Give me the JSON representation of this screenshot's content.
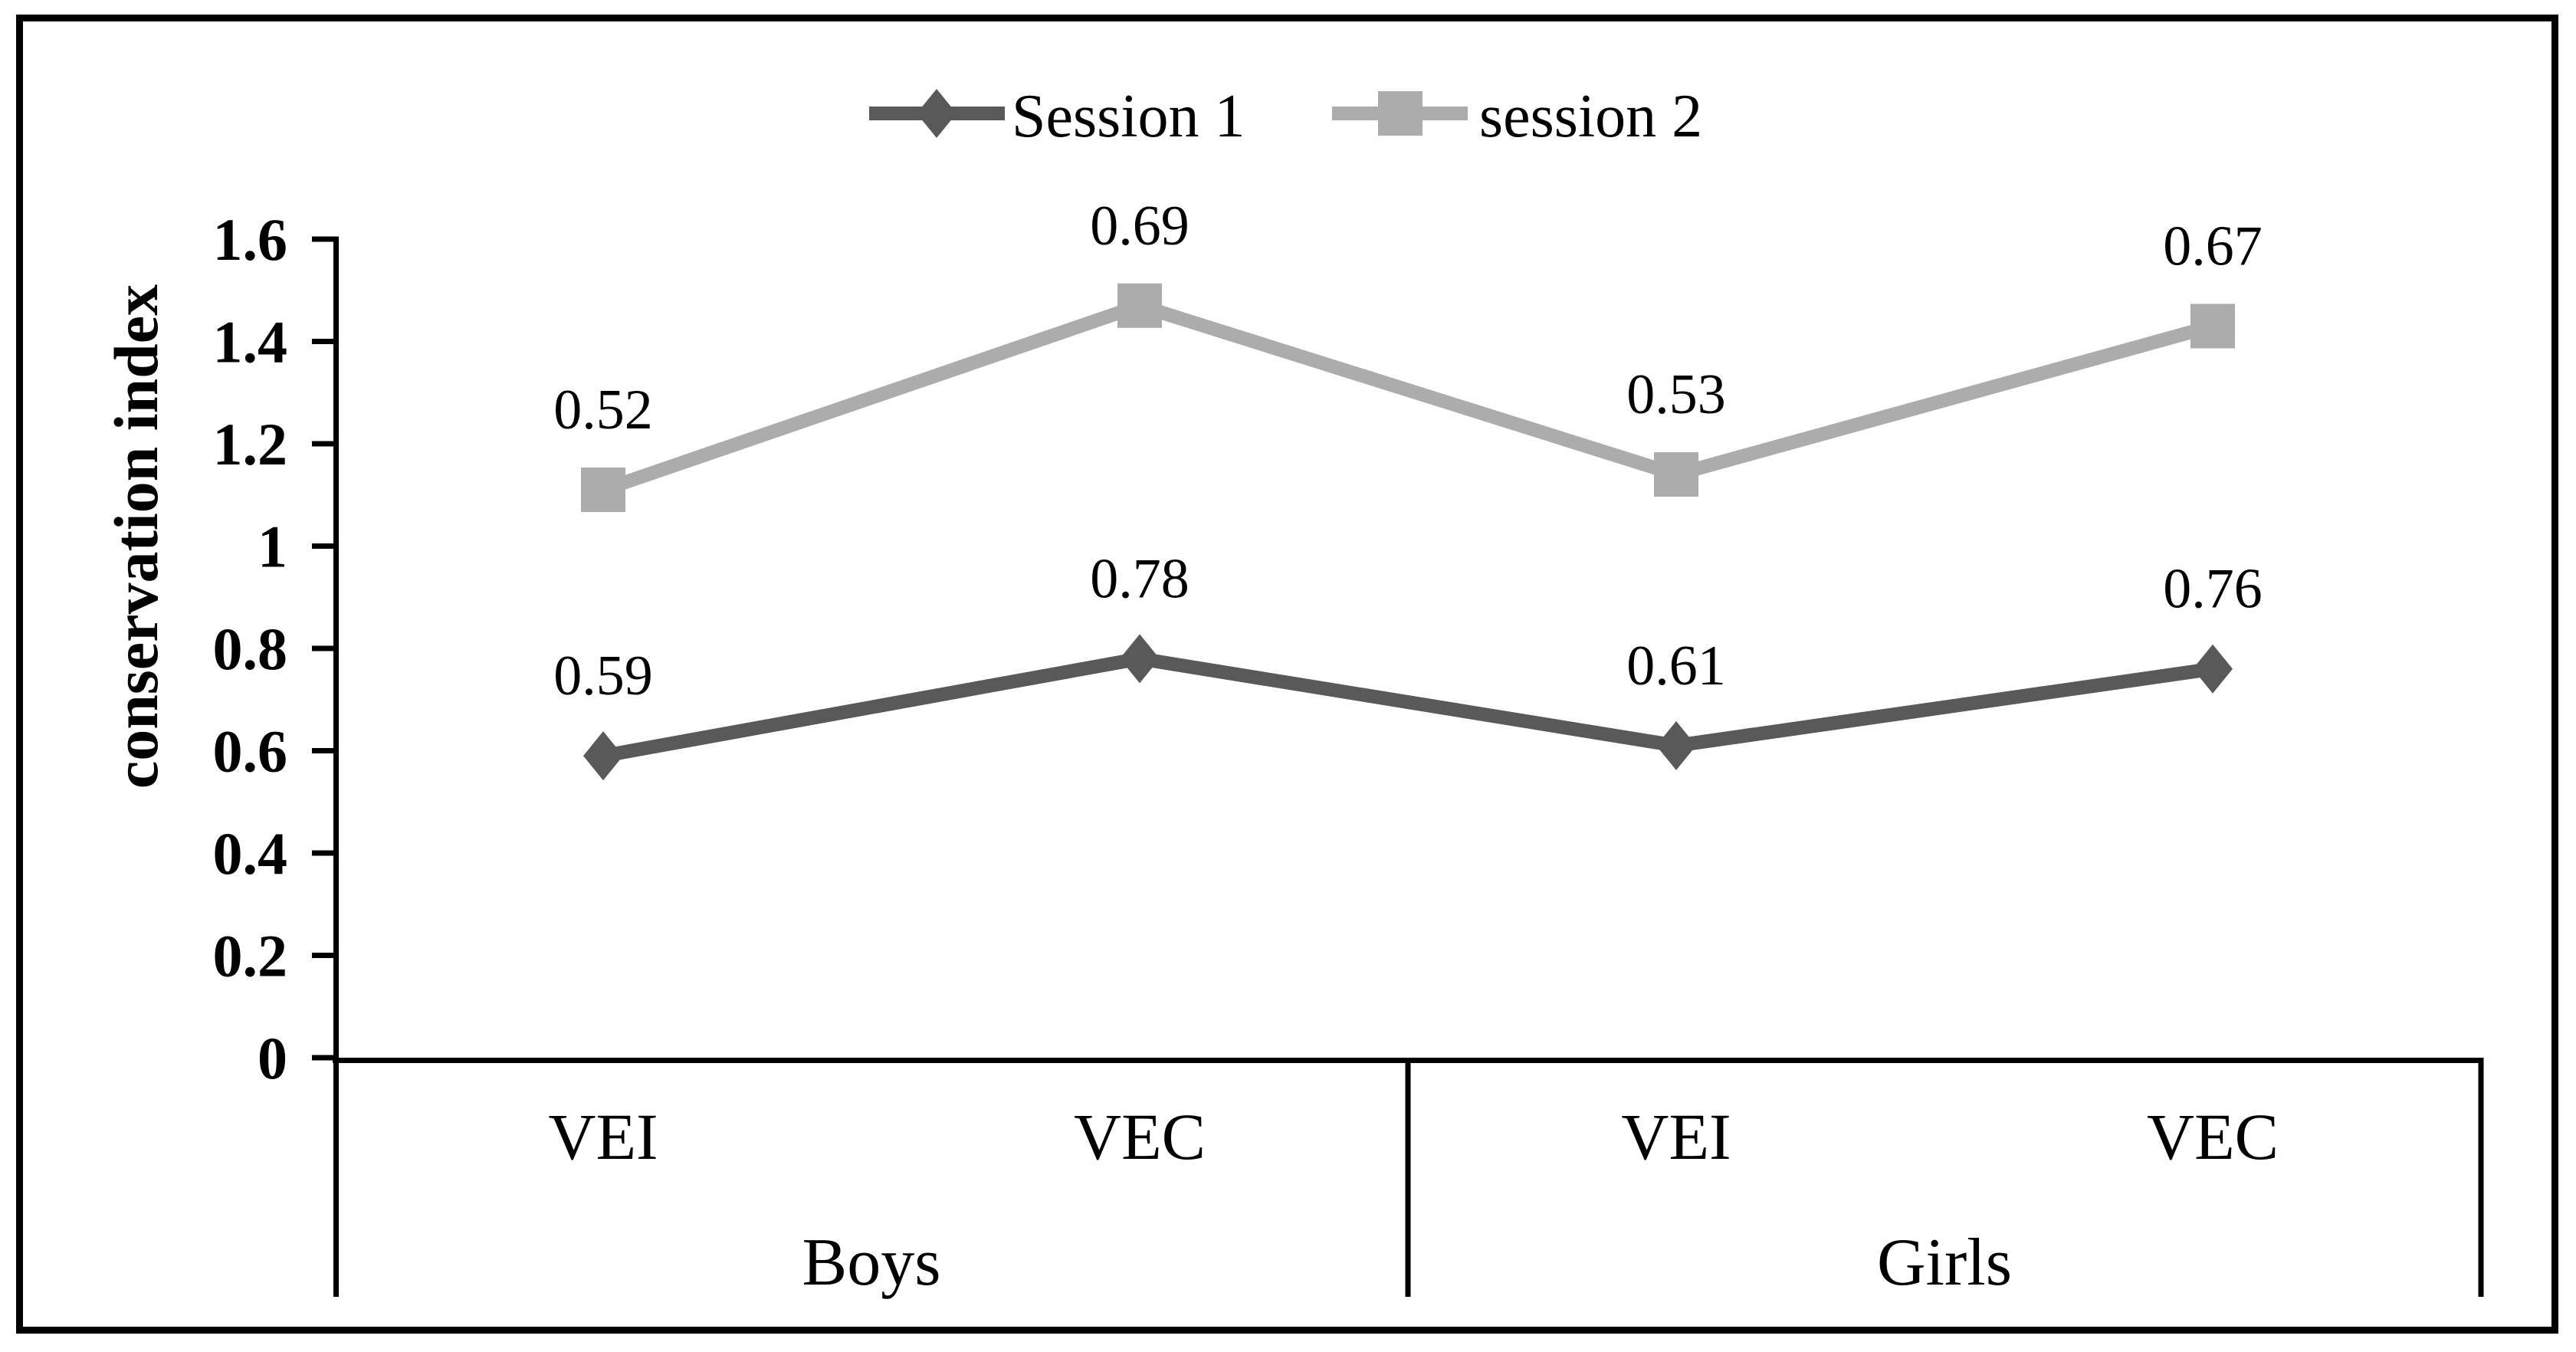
{
  "figure": {
    "background": "#ffffff",
    "border_color": "#000000",
    "text_color": "#000000"
  },
  "legend": {
    "items": [
      {
        "label": "Session 1",
        "marker": "diamond",
        "color": "#595959"
      },
      {
        "label": "session 2",
        "marker": "square",
        "color": "#acacac"
      }
    ]
  },
  "chart_data": {
    "type": "line",
    "title": "",
    "ylabel": "conservation index",
    "xlabel": "",
    "ylim": [
      0,
      1.6
    ],
    "yticks": [
      "0",
      "0.2",
      "0.4",
      "0.6",
      "0.8",
      "1",
      "1.2",
      "1.4",
      "1.6"
    ],
    "grid": false,
    "legend_position": "top-center",
    "stacked": true,
    "categories": [
      "VEI",
      "VEC",
      "VEI",
      "VEC"
    ],
    "groups": [
      {
        "label": "Boys",
        "category_span": [
          0,
          1
        ]
      },
      {
        "label": "Girls",
        "category_span": [
          2,
          3
        ]
      }
    ],
    "series": [
      {
        "name": "Session 1",
        "marker": "diamond",
        "color": "#595959",
        "values": [
          0.59,
          0.78,
          0.61,
          0.76
        ],
        "labels": [
          "0.59",
          "0.78",
          "0.61",
          "0.76"
        ],
        "plotted": [
          0.59,
          0.78,
          0.61,
          0.76
        ]
      },
      {
        "name": "session 2",
        "marker": "square",
        "color": "#acacac",
        "values": [
          0.52,
          0.69,
          0.53,
          0.67
        ],
        "labels": [
          "0.52",
          "0.69",
          "0.53",
          "0.67"
        ],
        "plotted": [
          1.11,
          1.47,
          1.14,
          1.43
        ]
      }
    ]
  }
}
